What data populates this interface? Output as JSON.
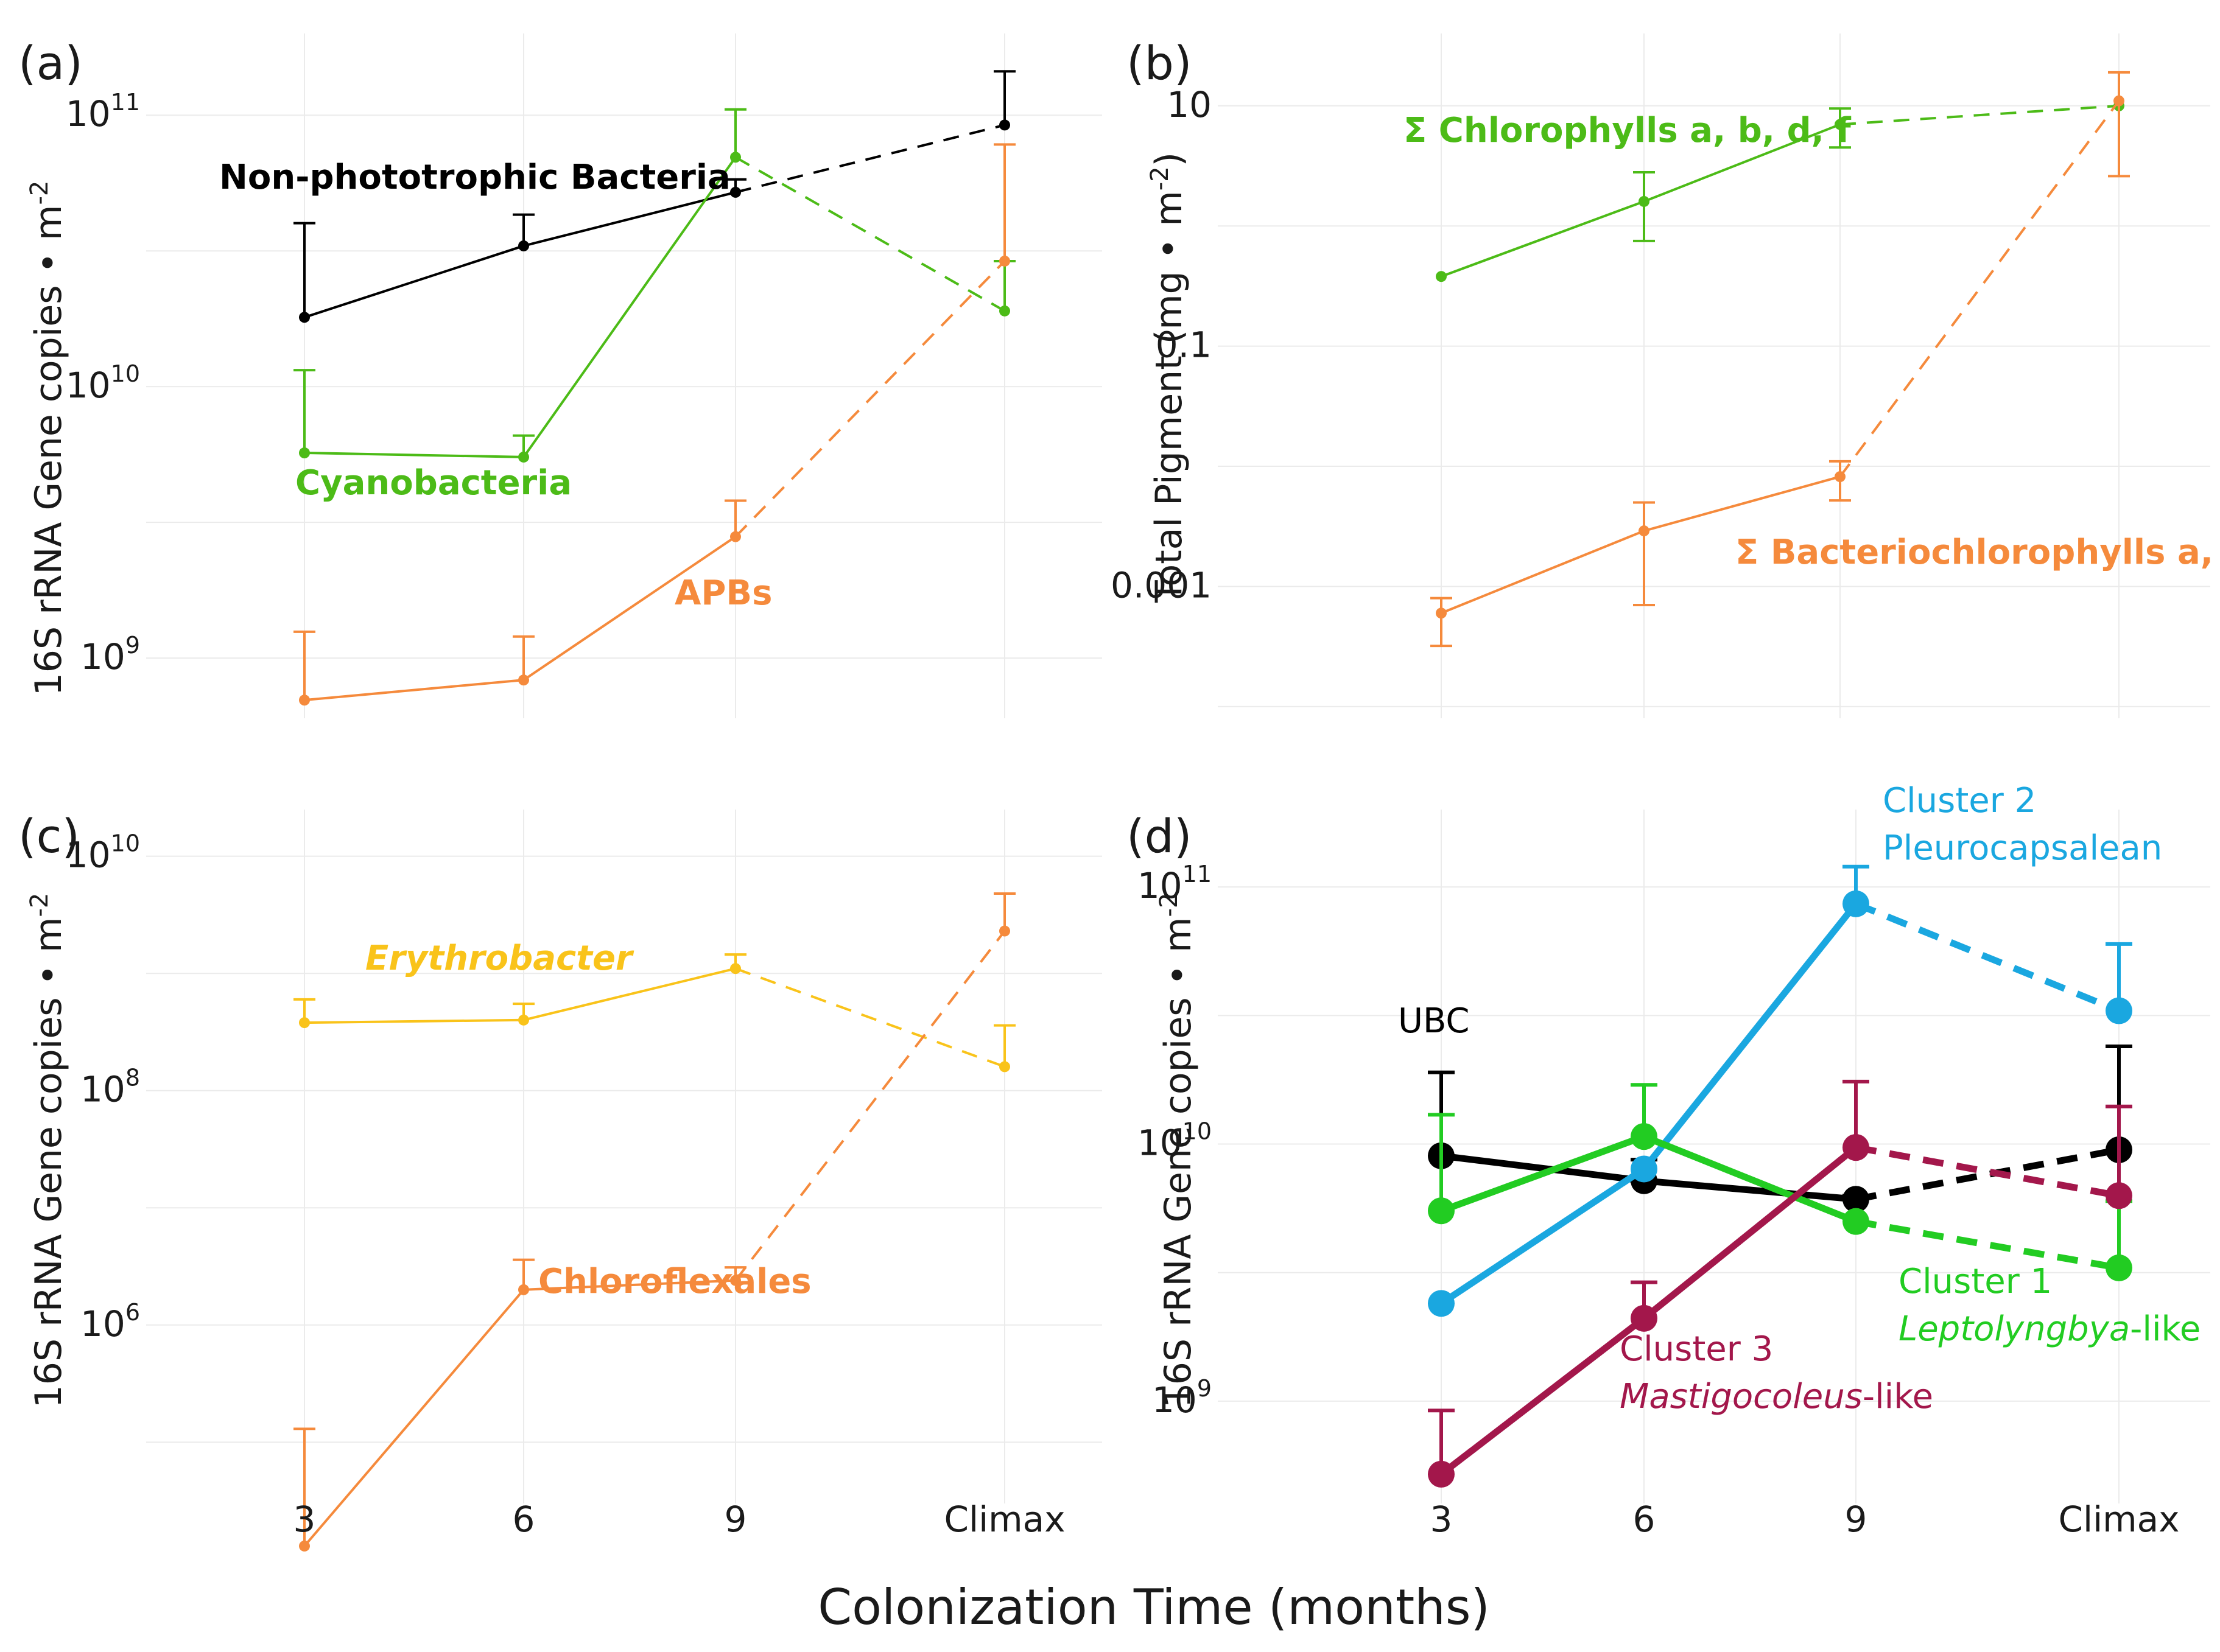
{
  "x_axis_title": "Colonization Time (months)",
  "x_categories": [
    "3",
    "6",
    "9",
    "Climax"
  ],
  "colors": {
    "black": "#000000",
    "green": "#4cbb17",
    "orange": "#f58a3c",
    "yellow": "#f9c31a",
    "blue": "#1aa7e0",
    "bright_green": "#22cc22",
    "maroon": "#a3174b"
  },
  "chart_data": [
    {
      "panel": "(a)",
      "type": "line",
      "scale": "log10",
      "ylabel": "16S rRNA Gene copies • m-2",
      "ylim": [
        600000000.0,
        200000000000.0
      ],
      "yticks": [
        {
          "label": "10",
          "sup": "9",
          "value": 1000000000.0
        },
        {
          "label": "10",
          "sup": "10",
          "value": 10000000000.0
        },
        {
          "label": "10",
          "sup": "11",
          "value": 100000000000.0
        }
      ],
      "categories": [
        "3",
        "6",
        "9",
        "Climax"
      ],
      "series": [
        {
          "name": "Non-phototrophic Bacteria",
          "color": "#000000",
          "values": [
            18000000000.0,
            33000000000.0,
            52000000000.0,
            92000000000.0
          ],
          "err_upper": [
            40000000000.0,
            43000000000.0,
            58000000000.0,
            145000000000.0
          ],
          "dashed_from_index": 2
        },
        {
          "name": "Cyanobacteria",
          "color": "#4cbb17",
          "values": [
            5700000000.0,
            5500000000.0,
            70000000000.0,
            19000000000.0
          ],
          "err_upper": [
            11500000000.0,
            6600000000.0,
            105000000000.0,
            29000000000.0
          ],
          "dashed_from_index": 2
        },
        {
          "name": "APBs",
          "color": "#f58a3c",
          "values": [
            700000000.0,
            830000000.0,
            2800000000.0,
            29000000000.0
          ],
          "err_upper": [
            1250000000.0,
            1200000000.0,
            3800000000.0,
            78000000000.0
          ],
          "dashed_from_index": 2
        }
      ]
    },
    {
      "panel": "(b)",
      "type": "line",
      "scale": "log10",
      "ylabel": "Total Pigment (mg • m-2)",
      "ylim": [
        8e-05,
        40
      ],
      "yticks": [
        {
          "label": "0.001",
          "value": 0.001
        },
        {
          "label": "0.1",
          "value": 0.1
        },
        {
          "label": "10",
          "value": 10
        }
      ],
      "categories": [
        "3",
        "6",
        "9",
        "Climax"
      ],
      "series": [
        {
          "name": "Σ Chlorophylls a, b, d, f",
          "color": "#4cbb17",
          "values": [
            0.38,
            1.6,
            7.0,
            10.0
          ],
          "err_lower": [
            0.38,
            0.75,
            4.5,
            10.0
          ],
          "err_upper": [
            0.38,
            2.8,
            9.5,
            10.0
          ],
          "dashed_from_index": 2
        },
        {
          "name": "Σ Bacteriochlorophylls a, c",
          "color": "#f58a3c",
          "values": [
            0.0006,
            0.0029,
            0.0082,
            11.0
          ],
          "err_lower": [
            0.00032,
            0.0007,
            0.0052,
            2.6
          ],
          "err_upper": [
            0.0008,
            0.005,
            0.011,
            19.0
          ],
          "dashed_from_index": 2
        }
      ]
    },
    {
      "panel": "(c)",
      "type": "line",
      "scale": "log10",
      "ylabel": "16S rRNA Gene copies • m-2",
      "ylim": [
        30000.0,
        25000000000.0
      ],
      "yticks": [
        {
          "label": "10",
          "sup": "6",
          "value": 1000000.0
        },
        {
          "label": "10",
          "sup": "8",
          "value": 100000000.0
        },
        {
          "label": "10",
          "sup": "10",
          "value": 10000000000.0
        }
      ],
      "categories": [
        "3",
        "6",
        "9",
        "Climax"
      ],
      "series": [
        {
          "name": "Erythrobacter",
          "color": "#f9c31a",
          "italic": true,
          "values": [
            380000000.0,
            400000000.0,
            1100000000.0,
            160000000.0
          ],
          "err_upper": [
            600000000.0,
            550000000.0,
            1450000000.0,
            360000000.0
          ],
          "dashed_from_index": 2
        },
        {
          "name": "Chloroflexales",
          "color": "#f58a3c",
          "values": [
            13000.0,
            2000000.0,
            2400000.0,
            2300000000.0
          ],
          "err_upper": [
            130000.0,
            3600000.0,
            3100000.0,
            4800000000.0
          ],
          "dashed_from_index": 2
        }
      ]
    },
    {
      "panel": "(d)",
      "type": "line",
      "scale": "log10",
      "ylabel": "16S rRNA Gene copies • m-2",
      "ylim": [
        400000000.0,
        200000000000.0
      ],
      "yticks": [
        {
          "label": "10",
          "sup": "9",
          "value": 1000000000.0
        },
        {
          "label": "10",
          "sup": "10",
          "value": 10000000000.0
        },
        {
          "label": "10",
          "sup": "11",
          "value": 100000000000.0
        }
      ],
      "categories": [
        "3",
        "6",
        "9",
        "Climax"
      ],
      "series": [
        {
          "name": "UBC",
          "color": "#000000",
          "values": [
            9000000000.0,
            7200000000.0,
            6100000000.0,
            9500000000.0
          ],
          "err_upper": [
            19000000000.0,
            8700000000.0,
            6300000000.0,
            24000000000.0
          ],
          "dashed_from_index": 2
        },
        {
          "name": "Cluster 2 Pleurocapsalean",
          "color": "#1aa7e0",
          "values": [
            2400000000.0,
            8000000000.0,
            86000000000.0,
            33000000000.0
          ],
          "err_upper": [
            2400000000.0,
            8000000000.0,
            120000000000.0,
            60000000000.0
          ],
          "dashed_from_index": 2
        },
        {
          "name": "Cluster 1 Leptolyngbya-like",
          "color": "#22cc22",
          "values": [
            5500000000.0,
            10700000000.0,
            5000000000.0,
            3300000000.0
          ],
          "err_upper": [
            13000000000.0,
            17000000000.0,
            5000000000.0,
            6000000000.0
          ],
          "dashed_from_index": 2
        },
        {
          "name": "Cluster 3 Mastigocoleus-like",
          "color": "#a3174b",
          "values": [
            520000000.0,
            2100000000.0,
            9700000000.0,
            6300000000.0
          ],
          "err_upper": [
            920000000.0,
            2900000000.0,
            17500000000.0,
            14000000000.0
          ],
          "dashed_from_index": 2
        }
      ]
    }
  ],
  "labels": {
    "a_nonphoto": "Non-phototrophic Bacteria",
    "a_cyano": "Cyanobacteria",
    "a_apbs": "APBs",
    "b_chl": "Σ Chlorophylls a, b, d, f",
    "b_bchl": "Σ Bacteriochlorophylls a, c",
    "c_ery": "Erythrobacter",
    "c_chlorofl": "Chloroflexales",
    "d_ubc": "UBC",
    "d_c2_line1": "Cluster 2",
    "d_c2_line2": "Pleurocapsalean",
    "d_c1_line1": "Cluster 1",
    "d_c1_italic": "Leptolyngbya",
    "d_c1_suffix": "-like",
    "d_c3_line1": "Cluster 3",
    "d_c3_italic": "Mastigocoleus",
    "d_c3_suffix": "-like"
  },
  "axis_titles": {
    "a_y_main": "16S rRNA Gene copies • m",
    "a_y_sup": "-2",
    "b_y_main": "Total Pigment (mg • m",
    "b_y_sup": "-2",
    "b_y_close": ")",
    "c_y_main": "16S rRNA Gene copies • m",
    "c_y_sup": "-2",
    "d_y_main": "16S rRNA Gene copies • m",
    "d_y_sup": "-2"
  },
  "panel_letters": [
    "(a)",
    "(b)",
    "(c)",
    "(d)"
  ]
}
